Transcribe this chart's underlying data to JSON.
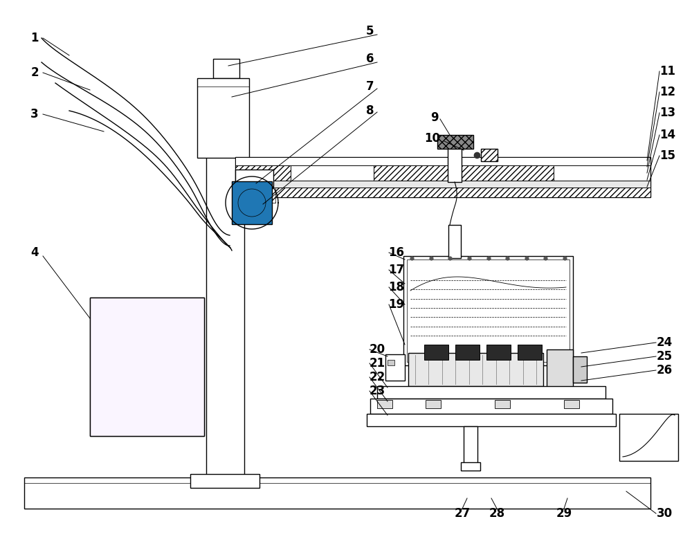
{
  "bg_color": "#ffffff",
  "line_color": "#000000",
  "fig_width": 10.0,
  "fig_height": 7.76,
  "dpi": 100
}
